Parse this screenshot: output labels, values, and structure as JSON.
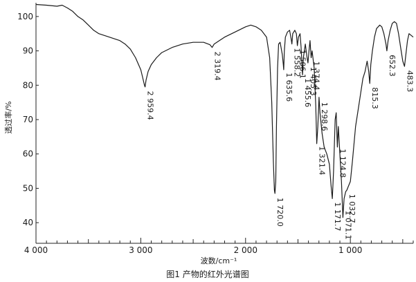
{
  "chart_data": {
    "type": "line",
    "title": "",
    "caption": "图1  产物的红外光谱图",
    "xlabel": "波数/cm⁻¹",
    "ylabel": "透过率/%",
    "x_reversed": true,
    "xlim": [
      4000,
      400
    ],
    "ylim": [
      34,
      104
    ],
    "x_ticks": [
      {
        "value": 4000,
        "label": "4 000"
      },
      {
        "value": 3000,
        "label": "3 000"
      },
      {
        "value": 2000,
        "label": "2 000"
      },
      {
        "value": 1000,
        "label": "1 000"
      }
    ],
    "y_ticks": [
      {
        "value": 100,
        "label": "100"
      },
      {
        "value": 90,
        "label": "90"
      },
      {
        "value": 80,
        "label": "80"
      },
      {
        "value": 70,
        "label": "70"
      },
      {
        "value": 60,
        "label": "60"
      },
      {
        "value": 50,
        "label": "50"
      },
      {
        "value": 40,
        "label": "40"
      }
    ],
    "grid": false,
    "series": [
      {
        "color": "#1a1a1a",
        "points": [
          [
            4000,
            103.5
          ],
          [
            3900,
            103.3
          ],
          [
            3800,
            103
          ],
          [
            3750,
            103.3
          ],
          [
            3700,
            102.5
          ],
          [
            3650,
            101.5
          ],
          [
            3600,
            100
          ],
          [
            3550,
            99
          ],
          [
            3500,
            97.5
          ],
          [
            3450,
            96
          ],
          [
            3400,
            95
          ],
          [
            3350,
            94.5
          ],
          [
            3300,
            94
          ],
          [
            3250,
            93.5
          ],
          [
            3200,
            93
          ],
          [
            3150,
            92
          ],
          [
            3100,
            90.5
          ],
          [
            3050,
            88
          ],
          [
            3000,
            84.5
          ],
          [
            2980,
            82
          ],
          [
            2965,
            80
          ],
          [
            2959,
            79.5
          ],
          [
            2950,
            81.5
          ],
          [
            2930,
            84
          ],
          [
            2900,
            86
          ],
          [
            2850,
            88
          ],
          [
            2800,
            89.5
          ],
          [
            2700,
            91
          ],
          [
            2600,
            92
          ],
          [
            2500,
            92.5
          ],
          [
            2400,
            92.5
          ],
          [
            2340,
            91.8
          ],
          [
            2319,
            91
          ],
          [
            2300,
            92
          ],
          [
            2250,
            93
          ],
          [
            2200,
            94
          ],
          [
            2100,
            95.5
          ],
          [
            2000,
            97
          ],
          [
            1950,
            97.5
          ],
          [
            1900,
            97
          ],
          [
            1850,
            96
          ],
          [
            1800,
            94
          ],
          [
            1770,
            88
          ],
          [
            1750,
            75
          ],
          [
            1735,
            58
          ],
          [
            1725,
            49.5
          ],
          [
            1720,
            48.5
          ],
          [
            1712,
            52
          ],
          [
            1705,
            68
          ],
          [
            1695,
            85
          ],
          [
            1685,
            92
          ],
          [
            1670,
            92.5
          ],
          [
            1650,
            89
          ],
          [
            1640,
            86
          ],
          [
            1636,
            84.5
          ],
          [
            1630,
            90
          ],
          [
            1620,
            94
          ],
          [
            1600,
            95.5
          ],
          [
            1580,
            96
          ],
          [
            1565,
            93.5
          ],
          [
            1558,
            92
          ],
          [
            1550,
            95
          ],
          [
            1530,
            96
          ],
          [
            1515,
            95
          ],
          [
            1506,
            91.5
          ],
          [
            1495,
            94
          ],
          [
            1480,
            95
          ],
          [
            1470,
            91
          ],
          [
            1456,
            83
          ],
          [
            1448,
            88
          ],
          [
            1430,
            92
          ],
          [
            1415,
            88.5
          ],
          [
            1405,
            86.5
          ],
          [
            1395,
            90
          ],
          [
            1385,
            93
          ],
          [
            1374,
            88
          ],
          [
            1365,
            90
          ],
          [
            1345,
            85
          ],
          [
            1330,
            74
          ],
          [
            1321,
            63
          ],
          [
            1310,
            68
          ],
          [
            1299,
            76.5
          ],
          [
            1290,
            72
          ],
          [
            1270,
            66
          ],
          [
            1250,
            62
          ],
          [
            1225,
            60
          ],
          [
            1200,
            57
          ],
          [
            1185,
            51
          ],
          [
            1172,
            47
          ],
          [
            1160,
            55
          ],
          [
            1145,
            70
          ],
          [
            1135,
            72
          ],
          [
            1124,
            62
          ],
          [
            1115,
            68
          ],
          [
            1100,
            60
          ],
          [
            1085,
            52
          ],
          [
            1071,
            41.5
          ],
          [
            1060,
            47
          ],
          [
            1045,
            49
          ],
          [
            1033,
            49.5
          ],
          [
            1020,
            50.5
          ],
          [
            1000,
            52
          ],
          [
            980,
            58
          ],
          [
            950,
            68
          ],
          [
            920,
            74
          ],
          [
            900,
            78
          ],
          [
            880,
            82
          ],
          [
            860,
            84
          ],
          [
            840,
            87
          ],
          [
            825,
            84
          ],
          [
            815,
            80.5
          ],
          [
            805,
            86
          ],
          [
            790,
            90
          ],
          [
            770,
            94
          ],
          [
            750,
            96.5
          ],
          [
            720,
            97.5
          ],
          [
            700,
            97
          ],
          [
            680,
            95
          ],
          [
            660,
            92
          ],
          [
            652,
            90
          ],
          [
            640,
            93
          ],
          [
            620,
            96
          ],
          [
            600,
            98
          ],
          [
            580,
            98.5
          ],
          [
            560,
            98
          ],
          [
            540,
            95
          ],
          [
            520,
            91
          ],
          [
            500,
            87
          ],
          [
            483,
            85.5
          ],
          [
            470,
            89
          ],
          [
            455,
            93
          ],
          [
            440,
            95
          ],
          [
            420,
            94.5
          ],
          [
            400,
            94
          ]
        ]
      }
    ],
    "peak_labels": [
      {
        "x": 2959.4,
        "label": "2 959.4"
      },
      {
        "x": 2319.4,
        "label": "2 319.4"
      },
      {
        "x": 1720.0,
        "label": "1 720.0"
      },
      {
        "x": 1635.6,
        "label": "1 635.6"
      },
      {
        "x": 1558.2,
        "label": "1 558.2"
      },
      {
        "x": 1506.1,
        "label": "1 506.1"
      },
      {
        "x": 1455.6,
        "label": "1 455.6"
      },
      {
        "x": 1405.3,
        "label": "1 405.3"
      },
      {
        "x": 1374.4,
        "label": "1 374.4"
      },
      {
        "x": 1321.4,
        "label": "1 321.4"
      },
      {
        "x": 1298.6,
        "label": "1 298.6"
      },
      {
        "x": 1171.7,
        "label": "1 171.7"
      },
      {
        "x": 1124.8,
        "label": "1 124.8"
      },
      {
        "x": 1071.1,
        "label": "1 071.1"
      },
      {
        "x": 1032.7,
        "label": "1 032.7"
      },
      {
        "x": 815.3,
        "label": "815.3"
      },
      {
        "x": 652.3,
        "label": "652.3"
      },
      {
        "x": 483.3,
        "label": "483.3"
      }
    ]
  }
}
